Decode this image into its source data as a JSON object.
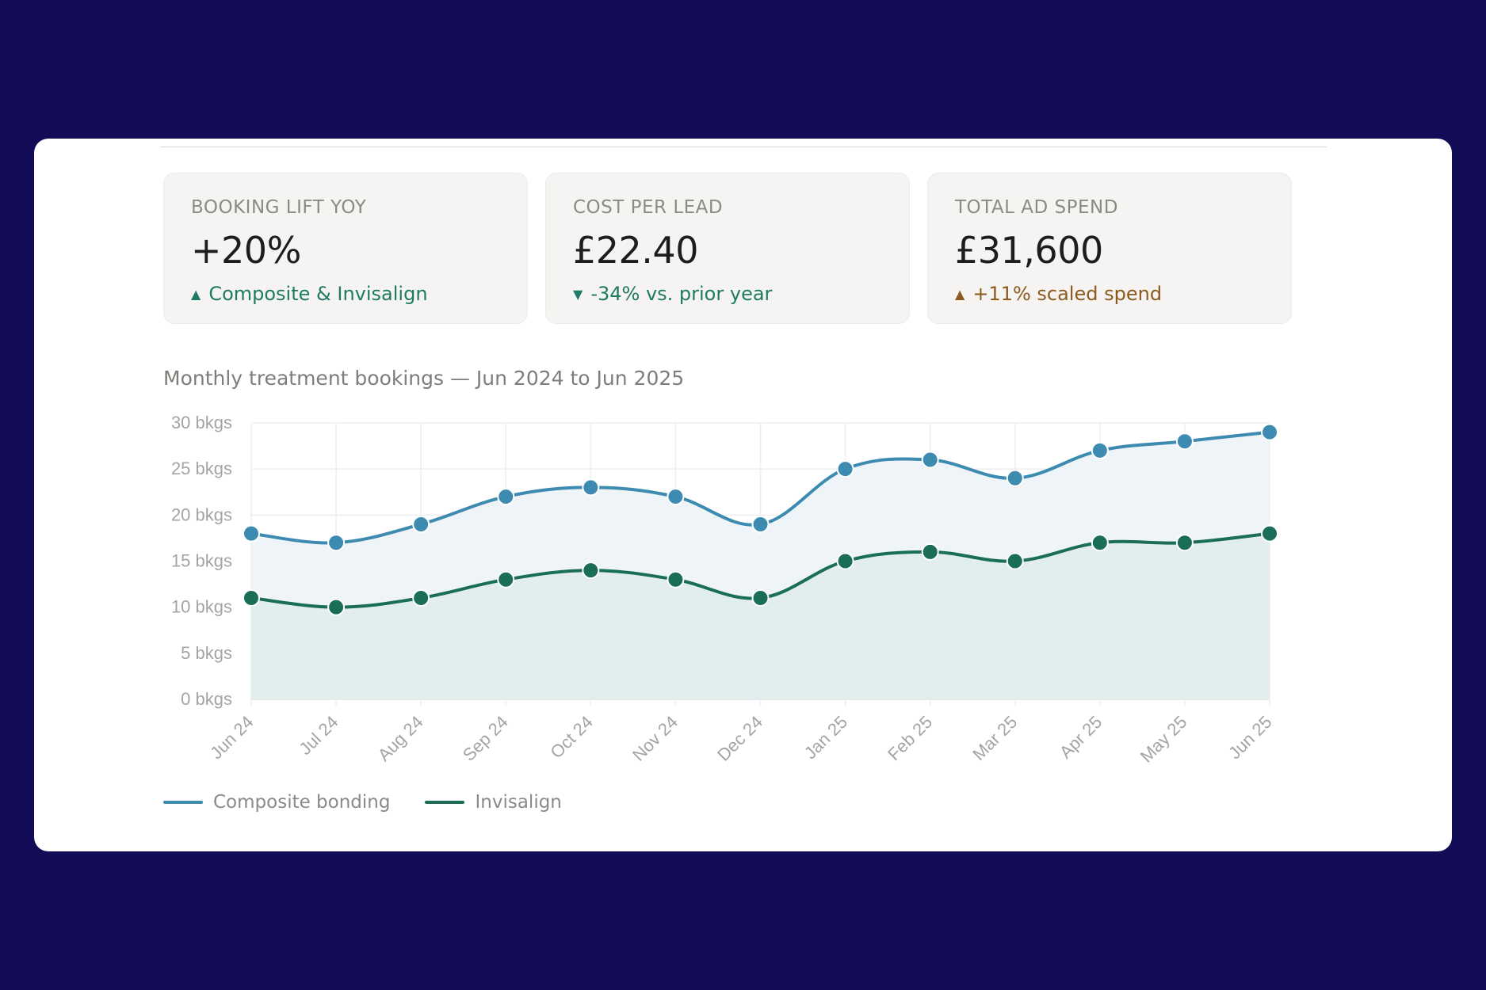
{
  "kpis": [
    {
      "label": "BOOKING LIFT YOY",
      "value": "+20%",
      "delta": "Composite & Invisalign",
      "direction": "up",
      "color": "#1f7a63"
    },
    {
      "label": "COST PER LEAD",
      "value": "£22.40",
      "delta": "-34% vs. prior year",
      "direction": "down",
      "color": "#1f7a63"
    },
    {
      "label": "TOTAL AD SPEND",
      "value": "£31,600",
      "delta": "+11% scaled spend",
      "direction": "up",
      "color": "#8c5a1c"
    }
  ],
  "chart_data": {
    "type": "area",
    "title": "Monthly treatment bookings — Jun 2024 to Jun 2025",
    "x": [
      "Jun 24",
      "Jul 24",
      "Aug 24",
      "Sep 24",
      "Oct 24",
      "Nov 24",
      "Dec 24",
      "Jan 25",
      "Feb 25",
      "Mar 25",
      "Apr 25",
      "May 25",
      "Jun 25"
    ],
    "y_ticks": [
      "0 bkgs",
      "5 bkgs",
      "10 bkgs",
      "15 bkgs",
      "20 bkgs",
      "25 bkgs",
      "30 bkgs"
    ],
    "ylim": [
      0,
      30
    ],
    "grid": true,
    "legend": "bottom-left",
    "series": [
      {
        "name": "Composite bonding",
        "color": "#3d8bb1",
        "fill": "#eef4f8",
        "values": [
          18,
          17,
          19,
          22,
          23,
          22,
          19,
          25,
          26,
          24,
          27,
          28,
          29
        ]
      },
      {
        "name": "Invisalign",
        "color": "#1a6d57",
        "fill": "#e1eeed",
        "values": [
          11,
          10,
          11,
          13,
          14,
          13,
          11,
          15,
          16,
          15,
          17,
          17,
          18
        ]
      }
    ]
  }
}
